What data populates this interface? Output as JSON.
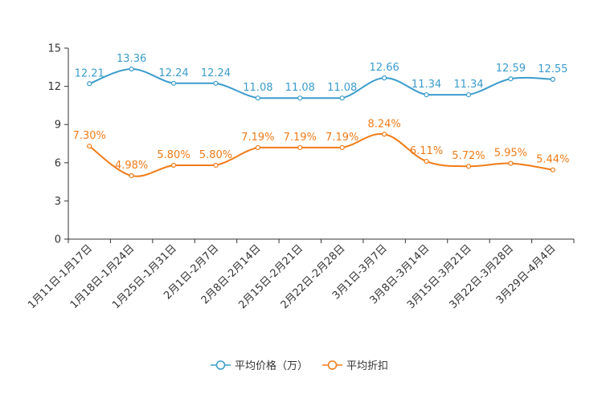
{
  "chart_data": {
    "type": "line",
    "categories": [
      "1月11日-1月17日",
      "1月18日-1月24日",
      "1月25日-1月31日",
      "2月1日-2月7日",
      "2月8日-2月14日",
      "2月15日-2月21日",
      "2月22日-2月28日",
      "3月1日-3月7日",
      "3月8日-3月14日",
      "3月15日-3月21日",
      "3月22日-3月28日",
      "3月29日-4月4日"
    ],
    "ylim": [
      0,
      15
    ],
    "yticks": [
      0,
      3,
      6,
      9,
      12,
      15
    ],
    "ytick_labels": [
      "0",
      "3",
      "6",
      "9",
      "12",
      "15"
    ],
    "series": [
      {
        "name": "平均价格（万）",
        "color": "#3b9ccc",
        "values": [
          12.21,
          13.36,
          12.24,
          12.24,
          11.08,
          11.08,
          11.08,
          12.66,
          11.34,
          11.34,
          12.59,
          12.55
        ],
        "labels": [
          "12.21",
          "13.36",
          "12.24",
          "12.24",
          "11.08",
          "11.08",
          "11.08",
          "12.66",
          "11.34",
          "11.34",
          "12.59",
          "12.55"
        ]
      },
      {
        "name": "平均折扣",
        "color": "#f07b18",
        "values": [
          7.3,
          4.98,
          5.8,
          5.8,
          7.19,
          7.19,
          7.19,
          8.24,
          6.11,
          5.72,
          5.95,
          5.44
        ],
        "labels": [
          "7.30%",
          "4.98%",
          "5.80%",
          "5.80%",
          "7.19%",
          "7.19%",
          "7.19%",
          "8.24%",
          "6.11%",
          "5.72%",
          "5.95%",
          "5.44%"
        ]
      }
    ],
    "legend_position": "bottom-center",
    "grid": false
  }
}
